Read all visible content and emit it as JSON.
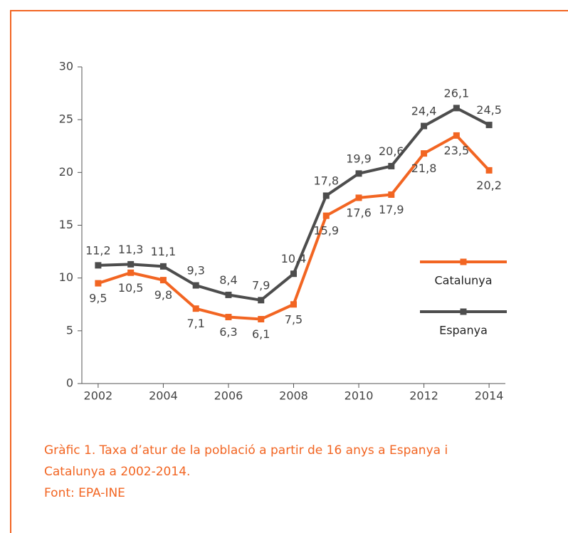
{
  "chart_data": {
    "type": "line",
    "x": [
      2002,
      2003,
      2004,
      2005,
      2006,
      2007,
      2008,
      2009,
      2010,
      2011,
      2012,
      2013,
      2014
    ],
    "series": [
      {
        "name": "Catalunya",
        "color": "#f26522",
        "values": [
          9.5,
          10.5,
          9.8,
          7.1,
          6.3,
          6.1,
          7.5,
          15.9,
          17.6,
          17.9,
          21.8,
          23.5,
          20.2
        ],
        "value_labels": [
          "9,5",
          "10,5",
          "9,8",
          "7,1",
          "6,3",
          "6,1",
          "7,5",
          "15,9",
          "17,6",
          "17,9",
          "21,8",
          "23,5",
          "20,2"
        ]
      },
      {
        "name": "Espanya",
        "color": "#4d4d4d",
        "values": [
          11.2,
          11.3,
          11.1,
          9.3,
          8.4,
          7.9,
          10.4,
          17.8,
          19.9,
          20.6,
          24.4,
          26.1,
          24.5
        ],
        "value_labels": [
          "11,2",
          "11,3",
          "11,1",
          "9,3",
          "8,4",
          "7,9",
          "10,4",
          "17,8",
          "19,9",
          "20,6",
          "24,4",
          "26,1",
          "24,5"
        ]
      }
    ],
    "xlim": [
      2001.5,
      2014.5
    ],
    "xticks": [
      2002,
      2004,
      2006,
      2008,
      2010,
      2012,
      2014
    ],
    "ylim": [
      0,
      30
    ],
    "yticks": [
      0,
      5,
      10,
      15,
      20,
      25,
      30
    ],
    "legend": "right",
    "caption": "Gràfic 1. Taxa d’atur de la població a partir de 16 anys a Espanya i Catalunya a 2002-2014.",
    "source": "Font: EPA-INE"
  }
}
